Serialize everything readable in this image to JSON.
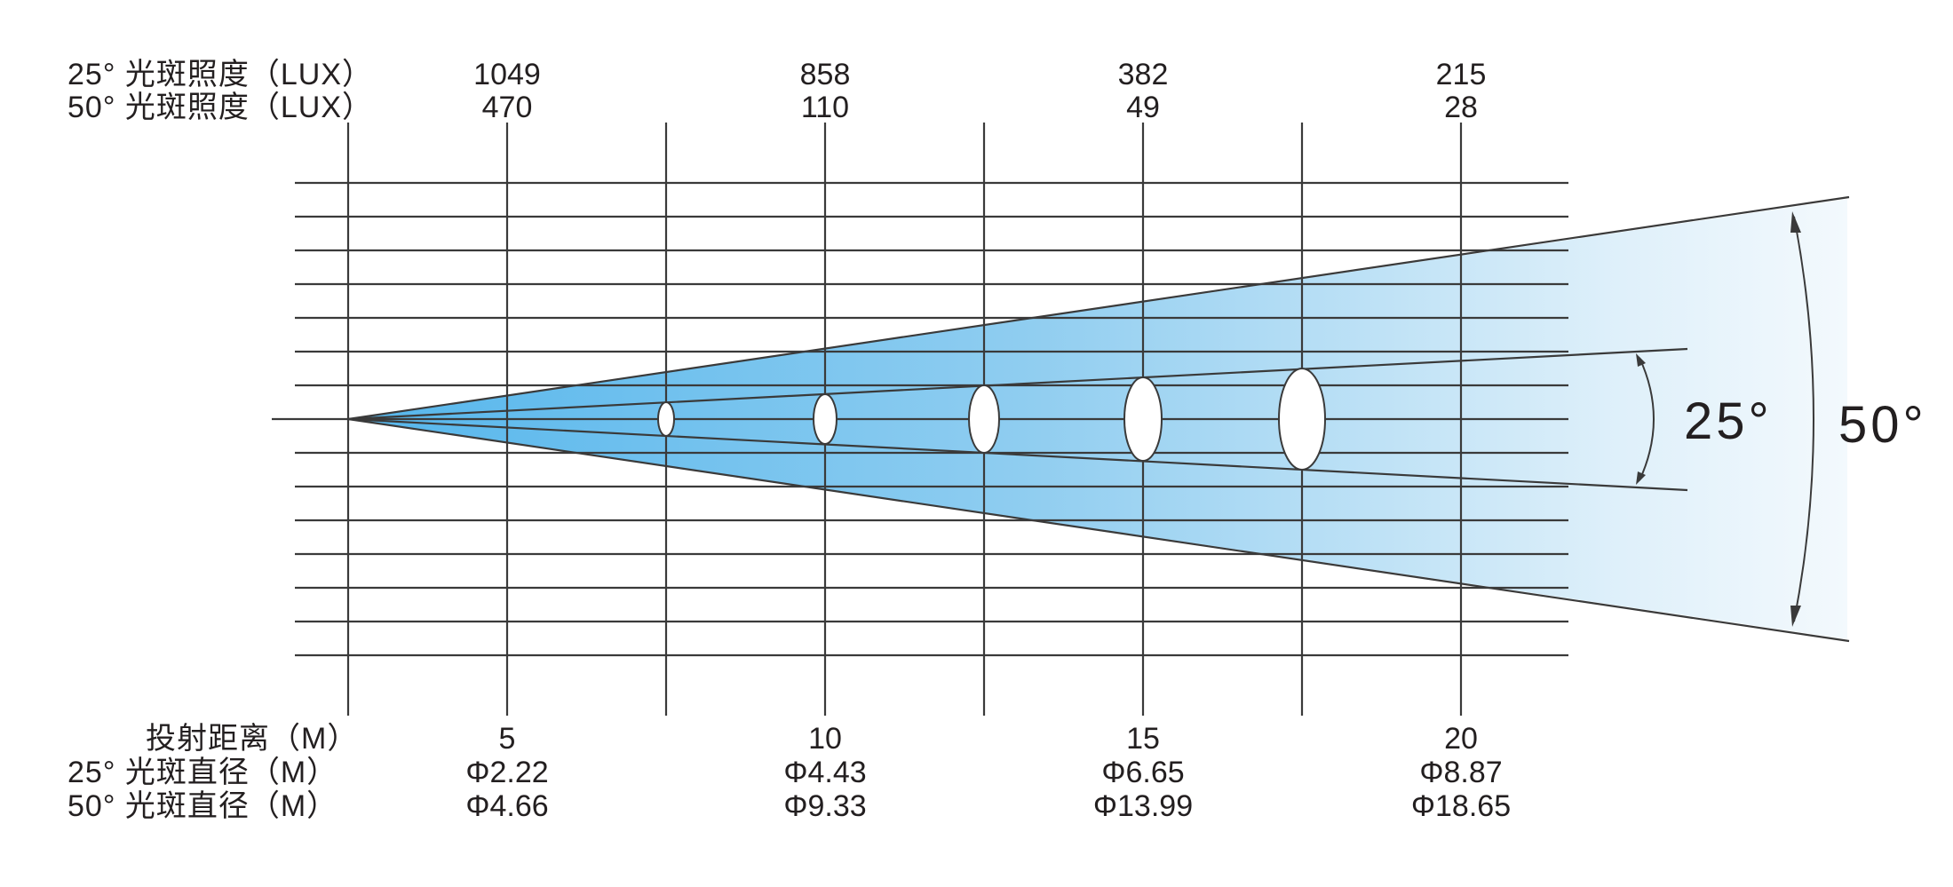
{
  "labels": {
    "lux_25": "25°  光斑照度（LUX）",
    "lux_50": "50°  光斑照度（LUX）",
    "distance": "投射距离（M）",
    "dia_25": "25°   光斑直径（M）",
    "dia_50": "50°   光斑直径（M）",
    "angle_narrow": "25°",
    "angle_wide": "50°"
  },
  "columns": [
    {
      "distance": "5",
      "lux_25": "1049",
      "lux_50": "470",
      "dia_25": "Φ2.22",
      "dia_50": "Φ4.66"
    },
    {
      "distance": "10",
      "lux_25": "858",
      "lux_50": "110",
      "dia_25": "Φ4.43",
      "dia_50": "Φ9.33"
    },
    {
      "distance": "15",
      "lux_25": "382",
      "lux_50": "49",
      "dia_25": "Φ6.65",
      "dia_50": "Φ13.99"
    },
    {
      "distance": "20",
      "lux_25": "215",
      "lux_50": "28",
      "dia_25": "Φ8.87",
      "dia_50": "Φ18.65"
    }
  ],
  "colors": {
    "beam_inner": "#55b6ec",
    "beam_outer": "#f3f9fd",
    "lines": "#3a3a3a"
  }
}
